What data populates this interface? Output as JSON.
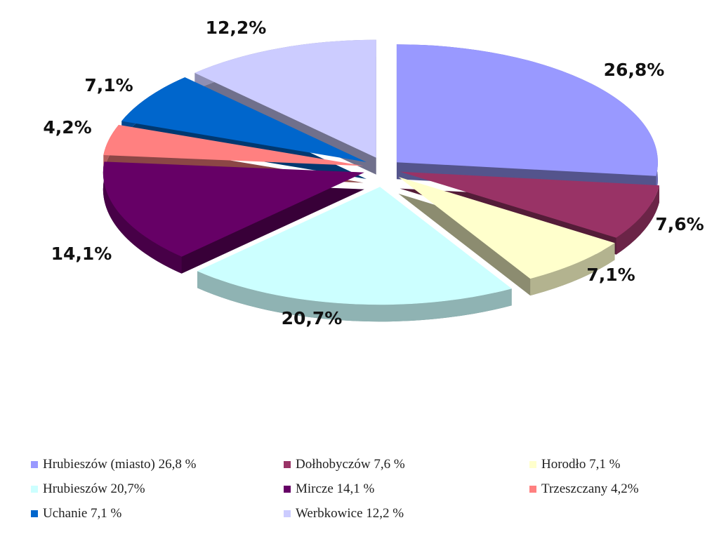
{
  "chart_data": {
    "type": "pie",
    "style": "3d-exploded",
    "slices": [
      {
        "label": "Hrubieszów (miasto)",
        "value": 26.8,
        "value_label": "26,8%",
        "legend": "Hrubieszów (miasto) 26,8 %",
        "color": "#9999ff"
      },
      {
        "label": "Dołhobyczów",
        "value": 7.6,
        "value_label": "7,6%",
        "legend": "Dołhobyczów 7,6 %",
        "color": "#993366"
      },
      {
        "label": "Horodło",
        "value": 7.1,
        "value_label": "7,1%",
        "legend": "Horodło 7,1 %",
        "color": "#ffffcc"
      },
      {
        "label": "Hrubieszów",
        "value": 20.7,
        "value_label": "20,7%",
        "legend": "Hrubieszów 20,7%",
        "color": "#ccffff"
      },
      {
        "label": "Mircze",
        "value": 14.1,
        "value_label": "14,1%",
        "legend": "Mircze 14,1 %",
        "color": "#660066"
      },
      {
        "label": "Trzeszczany",
        "value": 4.2,
        "value_label": "4,2%",
        "legend": "Trzeszczany 4,2%",
        "color": "#ff8080"
      },
      {
        "label": "Uchanie",
        "value": 7.1,
        "value_label": "7,1%",
        "legend": "Uchanie 7,1 %",
        "color": "#0066cc"
      },
      {
        "label": "Werbkowice",
        "value": 12.2,
        "value_label": "12,2%",
        "legend": "Werbkowice 12,2 %",
        "color": "#ccccff"
      }
    ],
    "legend_position": "bottom"
  }
}
